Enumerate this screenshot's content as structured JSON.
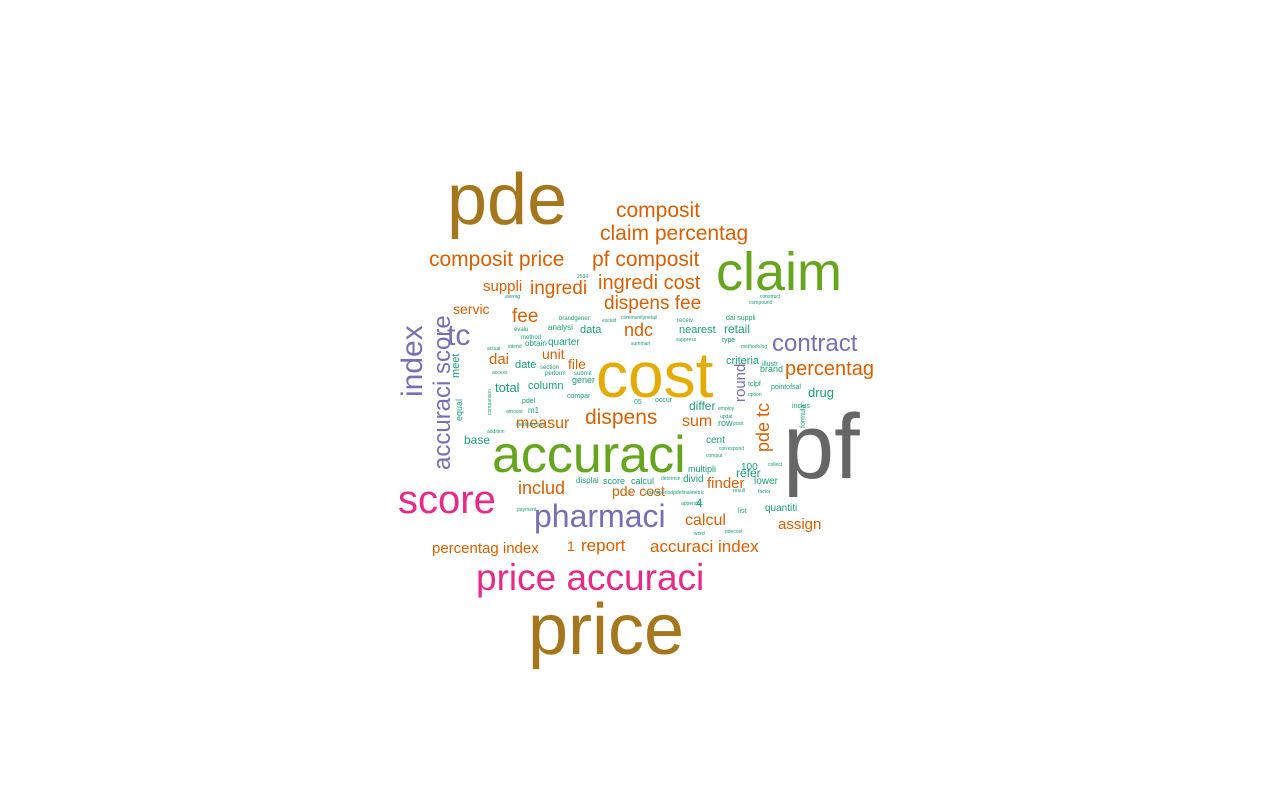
{
  "colors": {
    "brown": "#a6761d",
    "gray": "#666666",
    "green": "#66a61e",
    "gold": "#e6ab02",
    "magenta": "#e7298a",
    "purple": "#7570b3",
    "orange": "#d95f02",
    "teal": "#1b9e77"
  },
  "words": [
    {
      "text": "pf",
      "color": "gray"
    },
    {
      "text": "price",
      "color": "brown"
    },
    {
      "text": "pde",
      "color": "brown"
    },
    {
      "text": "cost",
      "color": "gold"
    },
    {
      "text": "accuraci",
      "color": "green"
    },
    {
      "text": "claim",
      "color": "green"
    },
    {
      "text": "score",
      "color": "magenta"
    },
    {
      "text": "price accuraci",
      "color": "magenta"
    },
    {
      "text": "pharmaci",
      "color": "purple"
    },
    {
      "text": "index",
      "color": "purple"
    },
    {
      "text": "accuraci score",
      "color": "purple"
    },
    {
      "text": "tc",
      "color": "purple"
    },
    {
      "text": "contract",
      "color": "purple"
    },
    {
      "text": "composit",
      "color": "orange"
    },
    {
      "text": "claim percentag",
      "color": "orange"
    },
    {
      "text": "composit price",
      "color": "orange"
    },
    {
      "text": "pf composit",
      "color": "orange"
    },
    {
      "text": "ingredi cost",
      "color": "orange"
    },
    {
      "text": "suppli",
      "color": "orange"
    },
    {
      "text": "ingredi",
      "color": "orange"
    },
    {
      "text": "dispens fee",
      "color": "orange"
    },
    {
      "text": "fee",
      "color": "orange"
    },
    {
      "text": "servic",
      "color": "orange"
    },
    {
      "text": "ndc",
      "color": "orange"
    },
    {
      "text": "unit",
      "color": "orange"
    },
    {
      "text": "dai",
      "color": "orange"
    },
    {
      "text": "file",
      "color": "orange"
    },
    {
      "text": "dispens",
      "color": "orange"
    },
    {
      "text": "measur",
      "color": "orange"
    },
    {
      "text": "sum",
      "color": "orange"
    },
    {
      "text": "percentag",
      "color": "orange"
    },
    {
      "text": "pde tc",
      "color": "orange"
    },
    {
      "text": "round",
      "color": "purple"
    },
    {
      "text": "includ",
      "color": "orange"
    },
    {
      "text": "finder",
      "color": "orange"
    },
    {
      "text": "pde cost",
      "color": "orange"
    },
    {
      "text": "calcul",
      "color": "orange"
    },
    {
      "text": "assign",
      "color": "orange"
    },
    {
      "text": "percentag index",
      "color": "orange"
    },
    {
      "text": "1",
      "color": "orange"
    },
    {
      "text": "report",
      "color": "orange"
    },
    {
      "text": "accuraci index",
      "color": "orange"
    },
    {
      "text": "meet",
      "color": "teal"
    },
    {
      "text": "equal",
      "color": "teal"
    },
    {
      "text": "base",
      "color": "teal"
    },
    {
      "text": "total",
      "color": "teal"
    },
    {
      "text": "date",
      "color": "teal"
    },
    {
      "text": "column",
      "color": "teal"
    },
    {
      "text": "data",
      "color": "teal"
    },
    {
      "text": "quarter",
      "color": "teal"
    },
    {
      "text": "gener",
      "color": "teal"
    },
    {
      "text": "retail",
      "color": "teal"
    },
    {
      "text": "nearest",
      "color": "teal"
    },
    {
      "text": "criteria",
      "color": "teal"
    },
    {
      "text": "brand",
      "color": "teal"
    },
    {
      "text": "drug",
      "color": "teal"
    },
    {
      "text": "differ",
      "color": "teal"
    },
    {
      "text": "cent",
      "color": "teal"
    },
    {
      "text": "row",
      "color": "teal"
    },
    {
      "text": "refer",
      "color": "teal"
    },
    {
      "text": "lower",
      "color": "teal"
    },
    {
      "text": "quantiti",
      "color": "teal"
    },
    {
      "text": "divid",
      "color": "teal"
    },
    {
      "text": "multipli",
      "color": "teal"
    },
    {
      "text": "100",
      "color": "teal"
    },
    {
      "text": "4",
      "color": "teal"
    },
    {
      "text": "analysi",
      "color": "teal"
    },
    {
      "text": "obtain",
      "color": "teal"
    },
    {
      "text": "compar",
      "color": "teal"
    },
    {
      "text": "displai",
      "color": "teal"
    },
    {
      "text": "score",
      "color": "teal"
    },
    {
      "text": "calcul",
      "color": "teal"
    },
    {
      "text": "list",
      "color": "teal"
    },
    {
      "text": "dai suppli",
      "color": "teal"
    },
    {
      "text": "type",
      "color": "teal"
    },
    {
      "text": "pointofsal",
      "color": "teal"
    },
    {
      "text": "tclpf",
      "color": "teal"
    },
    {
      "text": "illustr",
      "color": "teal"
    },
    {
      "text": "inclus",
      "color": "teal"
    },
    {
      "text": "formula",
      "color": "teal"
    },
    {
      "text": "m1",
      "color": "teal"
    },
    {
      "text": "pdel",
      "color": "teal"
    },
    {
      "text": "section",
      "color": "teal"
    },
    {
      "text": "perform",
      "color": "teal"
    },
    {
      "text": "submit",
      "color": "teal"
    },
    {
      "text": "evalu",
      "color": "teal"
    },
    {
      "text": "method",
      "color": "teal"
    },
    {
      "text": "brandgener",
      "color": "teal"
    },
    {
      "text": "receiv",
      "color": "teal"
    },
    {
      "text": "communitynetail",
      "color": "teal"
    },
    {
      "text": "methodolog",
      "color": "teal"
    },
    {
      "text": "compound",
      "color": "teal"
    },
    {
      "text": "construct",
      "color": "teal"
    },
    {
      "text": "occur",
      "color": "teal"
    },
    {
      "text": "addition",
      "color": "teal"
    },
    {
      "text": "amount",
      "color": "teal"
    },
    {
      "text": "comparison",
      "color": "teal"
    },
    {
      "text": "medicaregov",
      "color": "teal"
    },
    {
      "text": "appendix",
      "color": "teal"
    },
    {
      "text": "collect",
      "color": "teal"
    },
    {
      "text": "pdecost",
      "color": "teal"
    },
    {
      "text": "access",
      "color": "teal"
    },
    {
      "text": "averag",
      "color": "teal"
    },
    {
      "text": "2534",
      "color": "teal"
    },
    {
      "text": "claimsperiodpdefinalmetric",
      "color": "teal"
    },
    {
      "text": "word",
      "color": "teal"
    },
    {
      "text": "exclud",
      "color": "teal"
    },
    {
      "text": "option",
      "color": "teal"
    },
    {
      "text": "factor",
      "color": "teal"
    },
    {
      "text": "result",
      "color": "teal"
    },
    {
      "text": "payment",
      "color": "teal"
    },
    {
      "text": "summari",
      "color": "teal"
    },
    {
      "text": "suppress",
      "color": "teal"
    },
    {
      "text": "determin",
      "color": "teal"
    },
    {
      "text": "correspond",
      "color": "teal"
    },
    {
      "text": "comput",
      "color": "teal"
    },
    {
      "text": "intend",
      "color": "teal"
    },
    {
      "text": "actual",
      "color": "teal"
    },
    {
      "text": "employ",
      "color": "teal"
    },
    {
      "text": "updat",
      "color": "teal"
    },
    {
      "text": "posit",
      "color": "teal"
    },
    {
      "text": "05",
      "color": "teal"
    }
  ]
}
